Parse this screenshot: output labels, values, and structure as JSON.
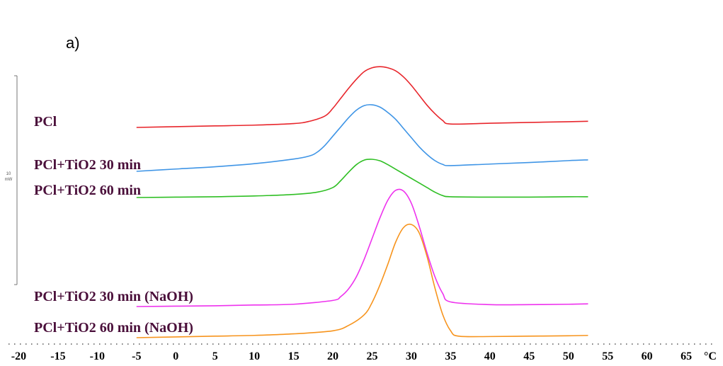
{
  "panel_label": "a)",
  "chart_data": {
    "type": "line",
    "x_unit": "°C",
    "xlim": [
      -20,
      70
    ],
    "x_ticks": [
      -20,
      -15,
      -10,
      -5,
      0,
      5,
      10,
      15,
      20,
      25,
      30,
      35,
      40,
      45,
      50,
      55,
      60,
      65
    ],
    "scale_bar": {
      "value": "10",
      "unit": "mW"
    },
    "grid": false,
    "legend_placement": "left, next to each curve",
    "series": [
      {
        "name": "PCl",
        "color": "#e8262c",
        "x": [
          -5,
          0,
          5,
          10,
          15,
          17,
          19,
          20,
          21,
          22,
          23,
          24,
          25,
          26,
          27,
          28,
          29,
          30,
          31,
          32,
          33,
          34,
          35,
          40,
          45,
          50,
          52.5
        ],
        "y": [
          0.0,
          0.1,
          0.2,
          0.3,
          0.5,
          0.8,
          1.5,
          2.5,
          3.8,
          5.1,
          6.3,
          7.3,
          7.8,
          7.95,
          7.8,
          7.4,
          6.6,
          5.5,
          4.2,
          2.9,
          1.8,
          0.9,
          0.45,
          0.55,
          0.65,
          0.75,
          0.8
        ]
      },
      {
        "name": "PCl+TiO2 30 min",
        "color": "#3f95e6",
        "x": [
          -5,
          0,
          5,
          10,
          15,
          17,
          18,
          19,
          20,
          21,
          22,
          23,
          24,
          25,
          26,
          27,
          28,
          29,
          30,
          31,
          32,
          33,
          34,
          35,
          40,
          45,
          50,
          52.5
        ],
        "y": [
          0.0,
          0.3,
          0.6,
          1.0,
          1.6,
          2.0,
          2.5,
          3.4,
          4.6,
          5.8,
          7.0,
          8.0,
          8.6,
          8.7,
          8.4,
          7.7,
          6.8,
          5.6,
          4.4,
          3.2,
          2.2,
          1.4,
          0.9,
          0.75,
          0.95,
          1.15,
          1.4,
          1.5
        ]
      },
      {
        "name": "PCl+TiO2 60 min",
        "color": "#2fbf24",
        "x": [
          -5,
          0,
          5,
          10,
          15,
          18,
          20,
          21,
          22,
          23,
          24,
          25,
          26,
          27,
          28,
          29,
          30,
          31,
          32,
          33,
          34,
          35,
          40,
          45,
          50,
          52.5
        ],
        "y": [
          0.0,
          0.05,
          0.1,
          0.2,
          0.4,
          0.7,
          1.3,
          2.2,
          3.3,
          4.3,
          4.9,
          5.0,
          4.8,
          4.3,
          3.7,
          3.1,
          2.5,
          1.9,
          1.3,
          0.7,
          0.25,
          0.1,
          0.05,
          0.05,
          0.1,
          0.1
        ]
      },
      {
        "name": "PCl+TiO2 30 min (NaOH)",
        "color": "#ee32ee",
        "x": [
          -5,
          0,
          5,
          10,
          15,
          20,
          21,
          22,
          23,
          24,
          25,
          26,
          27,
          28,
          29,
          30,
          31,
          32,
          33,
          34,
          35,
          40,
          45,
          50,
          52.5
        ],
        "y": [
          0.0,
          0.05,
          0.1,
          0.2,
          0.3,
          0.8,
          1.3,
          2.3,
          3.9,
          6.2,
          8.9,
          11.6,
          13.9,
          15.2,
          15.1,
          13.5,
          10.5,
          7.0,
          3.9,
          1.7,
          0.6,
          0.25,
          0.25,
          0.3,
          0.35
        ]
      },
      {
        "name": "PCl+TiO2 60 min (NaOH)",
        "color": "#f7941d",
        "x": [
          -5,
          0,
          5,
          10,
          15,
          20,
          22,
          24,
          25,
          26,
          27,
          28,
          29,
          30,
          31,
          32,
          33,
          34,
          35,
          36,
          40,
          45,
          50,
          52.5
        ],
        "y": [
          0.0,
          0.1,
          0.2,
          0.3,
          0.5,
          0.9,
          1.6,
          3.0,
          4.6,
          6.9,
          9.6,
          12.5,
          14.4,
          14.8,
          13.7,
          10.6,
          6.5,
          3.0,
          0.9,
          0.2,
          0.15,
          0.2,
          0.25,
          0.3
        ]
      }
    ]
  }
}
